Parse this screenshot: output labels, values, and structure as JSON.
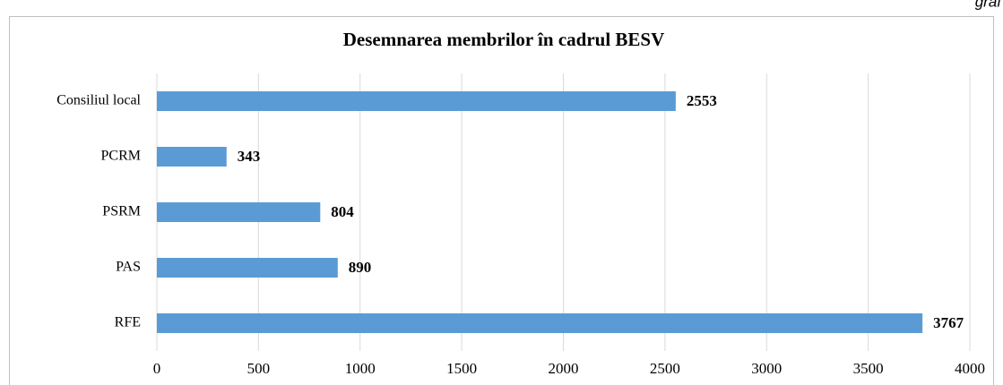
{
  "chart_data": {
    "type": "hbar",
    "title": "Desemnarea membrilor în cadrul BESV",
    "annotation": "graf",
    "categories": [
      "Consiliul local",
      "PCRM",
      "PSRM",
      "PAS",
      "RFE"
    ],
    "values": [
      2553,
      343,
      804,
      890,
      3767
    ],
    "color": "#5b9bd5",
    "xlim": [
      0,
      4000
    ],
    "xticks": [
      0,
      500,
      1000,
      1500,
      2000,
      2500,
      3000,
      3500,
      4000
    ],
    "grid": true
  }
}
